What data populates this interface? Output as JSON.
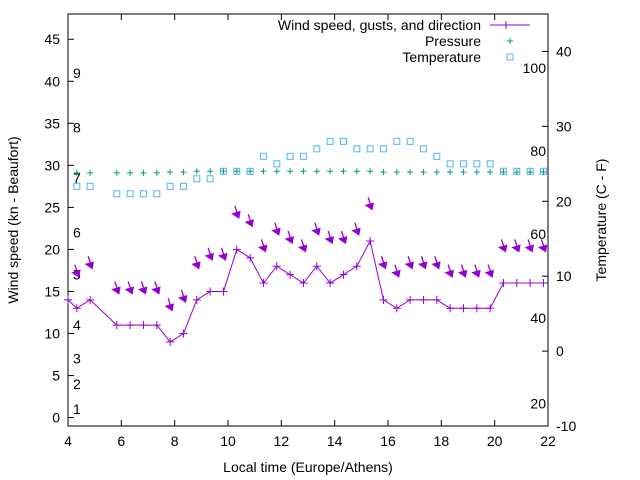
{
  "chart_data": {
    "type": "line",
    "title": "",
    "xlabel": "Local time (Europe/Athens)",
    "ylabel": "Wind speed (kn - Beaufort)",
    "y2label": "Temperature (C - F)",
    "xlim": [
      4,
      22
    ],
    "ylim": [
      -1,
      48
    ],
    "y2lim": [
      -10,
      45
    ],
    "x_ticks": [
      4,
      6,
      8,
      10,
      12,
      14,
      16,
      18,
      20,
      22
    ],
    "y_ticks": [
      0,
      5,
      10,
      15,
      20,
      25,
      30,
      35,
      40,
      45
    ],
    "y2_ticks": [
      -10,
      0,
      10,
      20,
      30,
      40
    ],
    "beaufort_labels": [
      {
        "label": "1",
        "y": 1
      },
      {
        "label": "2",
        "y": 4
      },
      {
        "label": "3",
        "y": 7
      },
      {
        "label": "4",
        "y": 11
      },
      {
        "label": "5",
        "y": 17
      },
      {
        "label": "6",
        "y": 22
      },
      {
        "label": "7",
        "y": 28.5
      },
      {
        "label": "8",
        "y": 34.5
      },
      {
        "label": "9",
        "y": 41
      }
    ],
    "fahrenheit_labels": [
      {
        "label": "20",
        "t": -7
      },
      {
        "label": "40",
        "t": 4.4
      },
      {
        "label": "60",
        "t": 15.6
      },
      {
        "label": "80",
        "t": 26.7
      },
      {
        "label": "100",
        "t": 37.8
      }
    ],
    "legend": {
      "position": "top-right",
      "entries": [
        "Wind speed, gusts, and direction",
        "Pressure",
        "Temperature"
      ]
    },
    "colors": {
      "wind": "#9400d3",
      "pressure": "#009e73",
      "temperature": "#56b4e9"
    },
    "series": [
      {
        "name": "Wind speed, gusts, and direction",
        "x": [
          4.0,
          4.33,
          4.83,
          5.83,
          6.33,
          6.83,
          7.33,
          7.83,
          8.33,
          8.83,
          9.33,
          9.83,
          10.33,
          10.83,
          11.33,
          11.83,
          12.33,
          12.83,
          13.33,
          13.83,
          14.33,
          14.83,
          15.33,
          15.83,
          16.33,
          16.83,
          17.33,
          17.83,
          18.33,
          18.83,
          19.33,
          19.83,
          20.33,
          20.83,
          21.33,
          21.83
        ],
        "values": [
          14,
          13,
          14,
          11,
          11,
          11,
          11,
          9,
          10,
          14,
          15,
          15,
          20,
          19,
          16,
          18,
          17,
          16,
          18,
          16,
          17,
          18,
          21,
          14,
          13,
          14,
          14,
          14,
          13,
          13,
          13,
          13,
          16,
          16,
          16,
          16
        ],
        "gusts_x": [
          4.33,
          4.83,
          5.83,
          6.33,
          6.83,
          7.33,
          7.83,
          8.33,
          8.83,
          9.33,
          9.83,
          10.33,
          10.83,
          11.33,
          11.83,
          12.33,
          12.83,
          13.33,
          13.83,
          14.33,
          14.83,
          15.33,
          15.83,
          16.33,
          16.83,
          17.33,
          17.83,
          18.33,
          18.83,
          19.33,
          19.83,
          20.33,
          20.83,
          21.33,
          21.83
        ],
        "gusts": [
          17,
          18,
          15,
          15,
          15,
          15,
          13,
          14,
          18,
          19,
          19,
          24,
          23,
          20,
          22,
          21,
          20,
          22,
          21,
          21,
          22,
          25,
          18,
          17,
          18,
          18,
          18,
          17,
          17,
          17,
          17,
          20,
          20,
          20,
          20
        ]
      },
      {
        "name": "Pressure",
        "x": [
          4.33,
          4.83,
          5.83,
          6.33,
          6.83,
          7.33,
          7.83,
          8.33,
          8.83,
          9.33,
          9.83,
          10.33,
          10.83,
          11.33,
          11.83,
          12.33,
          12.83,
          13.33,
          13.83,
          14.33,
          14.83,
          15.33,
          15.83,
          16.33,
          16.83,
          17.33,
          17.83,
          18.33,
          18.83,
          19.33,
          19.83,
          20.33,
          20.83,
          21.33,
          21.83
        ],
        "values": [
          29.1,
          29.1,
          29.1,
          29.1,
          29.1,
          29.1,
          29.2,
          29.2,
          29.3,
          29.3,
          29.3,
          29.3,
          29.3,
          29.3,
          29.3,
          29.3,
          29.3,
          29.3,
          29.3,
          29.3,
          29.3,
          29.3,
          29.2,
          29.2,
          29.2,
          29.2,
          29.2,
          29.2,
          29.2,
          29.2,
          29.2,
          29.2,
          29.2,
          29.2,
          29.2
        ]
      },
      {
        "name": "Temperature",
        "x": [
          4.33,
          4.83,
          5.83,
          6.33,
          6.83,
          7.33,
          7.83,
          8.33,
          8.83,
          9.33,
          9.83,
          10.33,
          10.83,
          11.33,
          11.83,
          12.33,
          12.83,
          13.33,
          13.83,
          14.33,
          14.83,
          15.33,
          15.83,
          16.33,
          16.83,
          17.33,
          17.83,
          18.33,
          18.83,
          19.33,
          19.83,
          20.33,
          20.83,
          21.33,
          21.83
        ],
        "values": [
          22,
          22,
          21,
          21,
          21,
          21,
          22,
          22,
          23,
          23,
          24,
          24,
          24,
          26,
          25,
          26,
          26,
          27,
          28,
          28,
          27,
          27,
          27,
          28,
          28,
          27,
          26,
          25,
          25,
          25,
          25,
          24,
          24,
          24,
          24
        ]
      }
    ]
  }
}
